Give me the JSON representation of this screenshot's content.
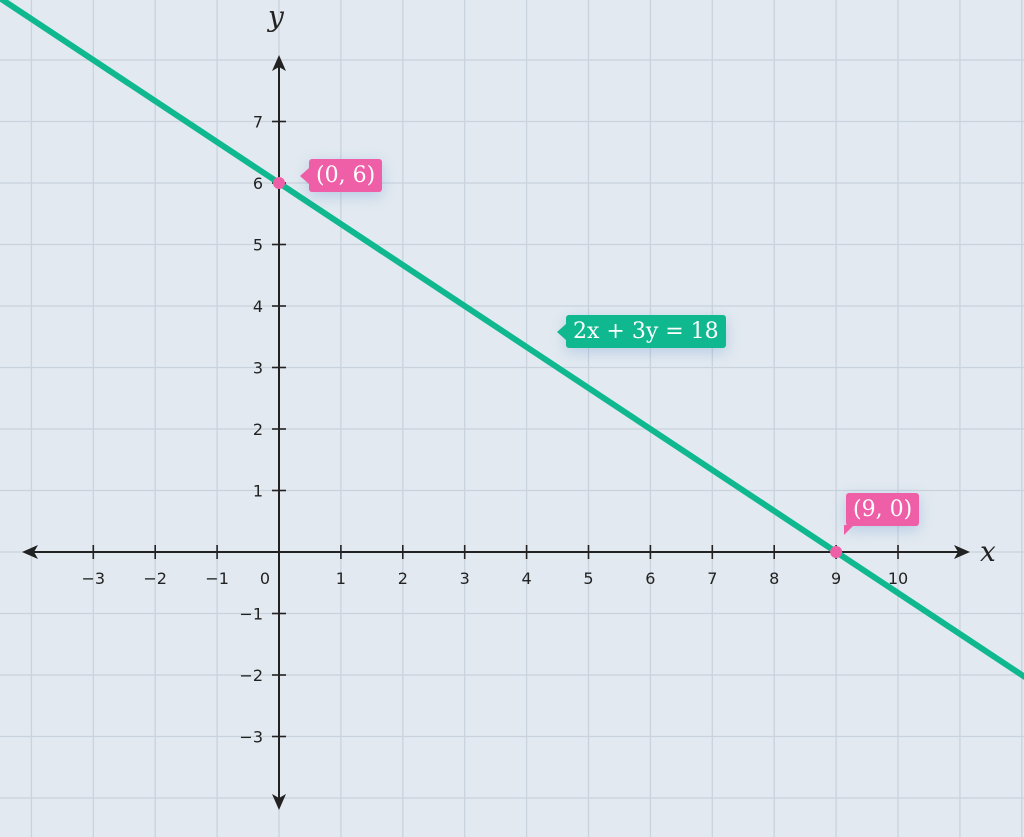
{
  "chart_data": {
    "type": "line",
    "title": "",
    "xlabel": "x",
    "ylabel": "y",
    "xlim": [
      -4.5,
      12.05
    ],
    "ylim": [
      -4.5,
      9
    ],
    "grid": true,
    "x_ticks": [
      -3,
      -2,
      -1,
      0,
      1,
      2,
      3,
      4,
      5,
      6,
      7,
      8,
      9,
      10
    ],
    "y_ticks": [
      -3,
      -2,
      -1,
      1,
      2,
      3,
      4,
      5,
      6,
      7
    ],
    "x_tick_labels": [
      "−3",
      "−2",
      "−1",
      "0",
      "1",
      "2",
      "3",
      "4",
      "5",
      "6",
      "7",
      "8",
      "9",
      "10"
    ],
    "y_tick_labels": [
      "−3",
      "−2",
      "−1",
      "1",
      "2",
      "3",
      "4",
      "5",
      "6",
      "7"
    ],
    "series": [
      {
        "name": "2x + 3y = 18",
        "equation": "2x + 3y = 18",
        "x": [
          -4.5,
          12.05
        ],
        "y": [
          9,
          -2.033
        ],
        "color": "#10b88f"
      }
    ],
    "points": [
      {
        "x": 0,
        "y": 6,
        "label": "(0, 6)",
        "color": "#ef5fa7"
      },
      {
        "x": 9,
        "y": 0,
        "label": "(9, 0)",
        "color": "#ef5fa7"
      }
    ],
    "line_label": "2x + 3y = 18",
    "colors": {
      "background": "#e2e9f0",
      "grid": "#c9d3dd",
      "axis": "#222222",
      "line": "#10b88f",
      "point": "#ef5fa7"
    }
  }
}
